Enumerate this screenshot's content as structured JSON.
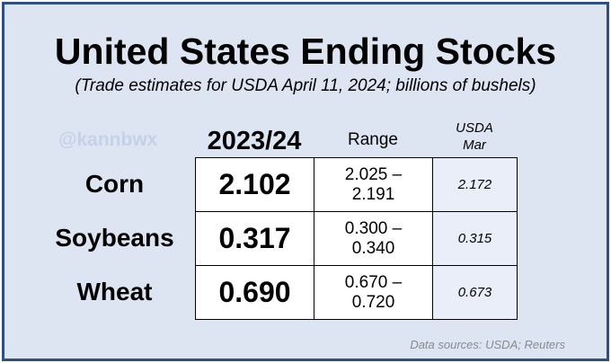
{
  "title": "United States Ending Stocks",
  "subtitle": "(Trade estimates for USDA April 11, 2024; billions of bushels)",
  "watermark": "@kannbwx",
  "columns": {
    "main": "2023/24",
    "range": "Range",
    "usda_line1": "USDA",
    "usda_line2": "Mar"
  },
  "rows": [
    {
      "label": "Corn",
      "estimate": "2.102",
      "range_low": "2.025 –",
      "range_high": "2.191",
      "usda": "2.172"
    },
    {
      "label": "Soybeans",
      "estimate": "0.317",
      "range_low": "0.300 –",
      "range_high": "0.340",
      "usda": "0.315"
    },
    {
      "label": "Wheat",
      "estimate": "0.690",
      "range_low": "0.670 –",
      "range_high": "0.720",
      "usda": "0.673"
    }
  ],
  "sources": "Data sources: USDA; Reuters",
  "colors": {
    "border": "#2d4f86",
    "background": "#dde5f2",
    "watermark": "#c4d2e8"
  }
}
